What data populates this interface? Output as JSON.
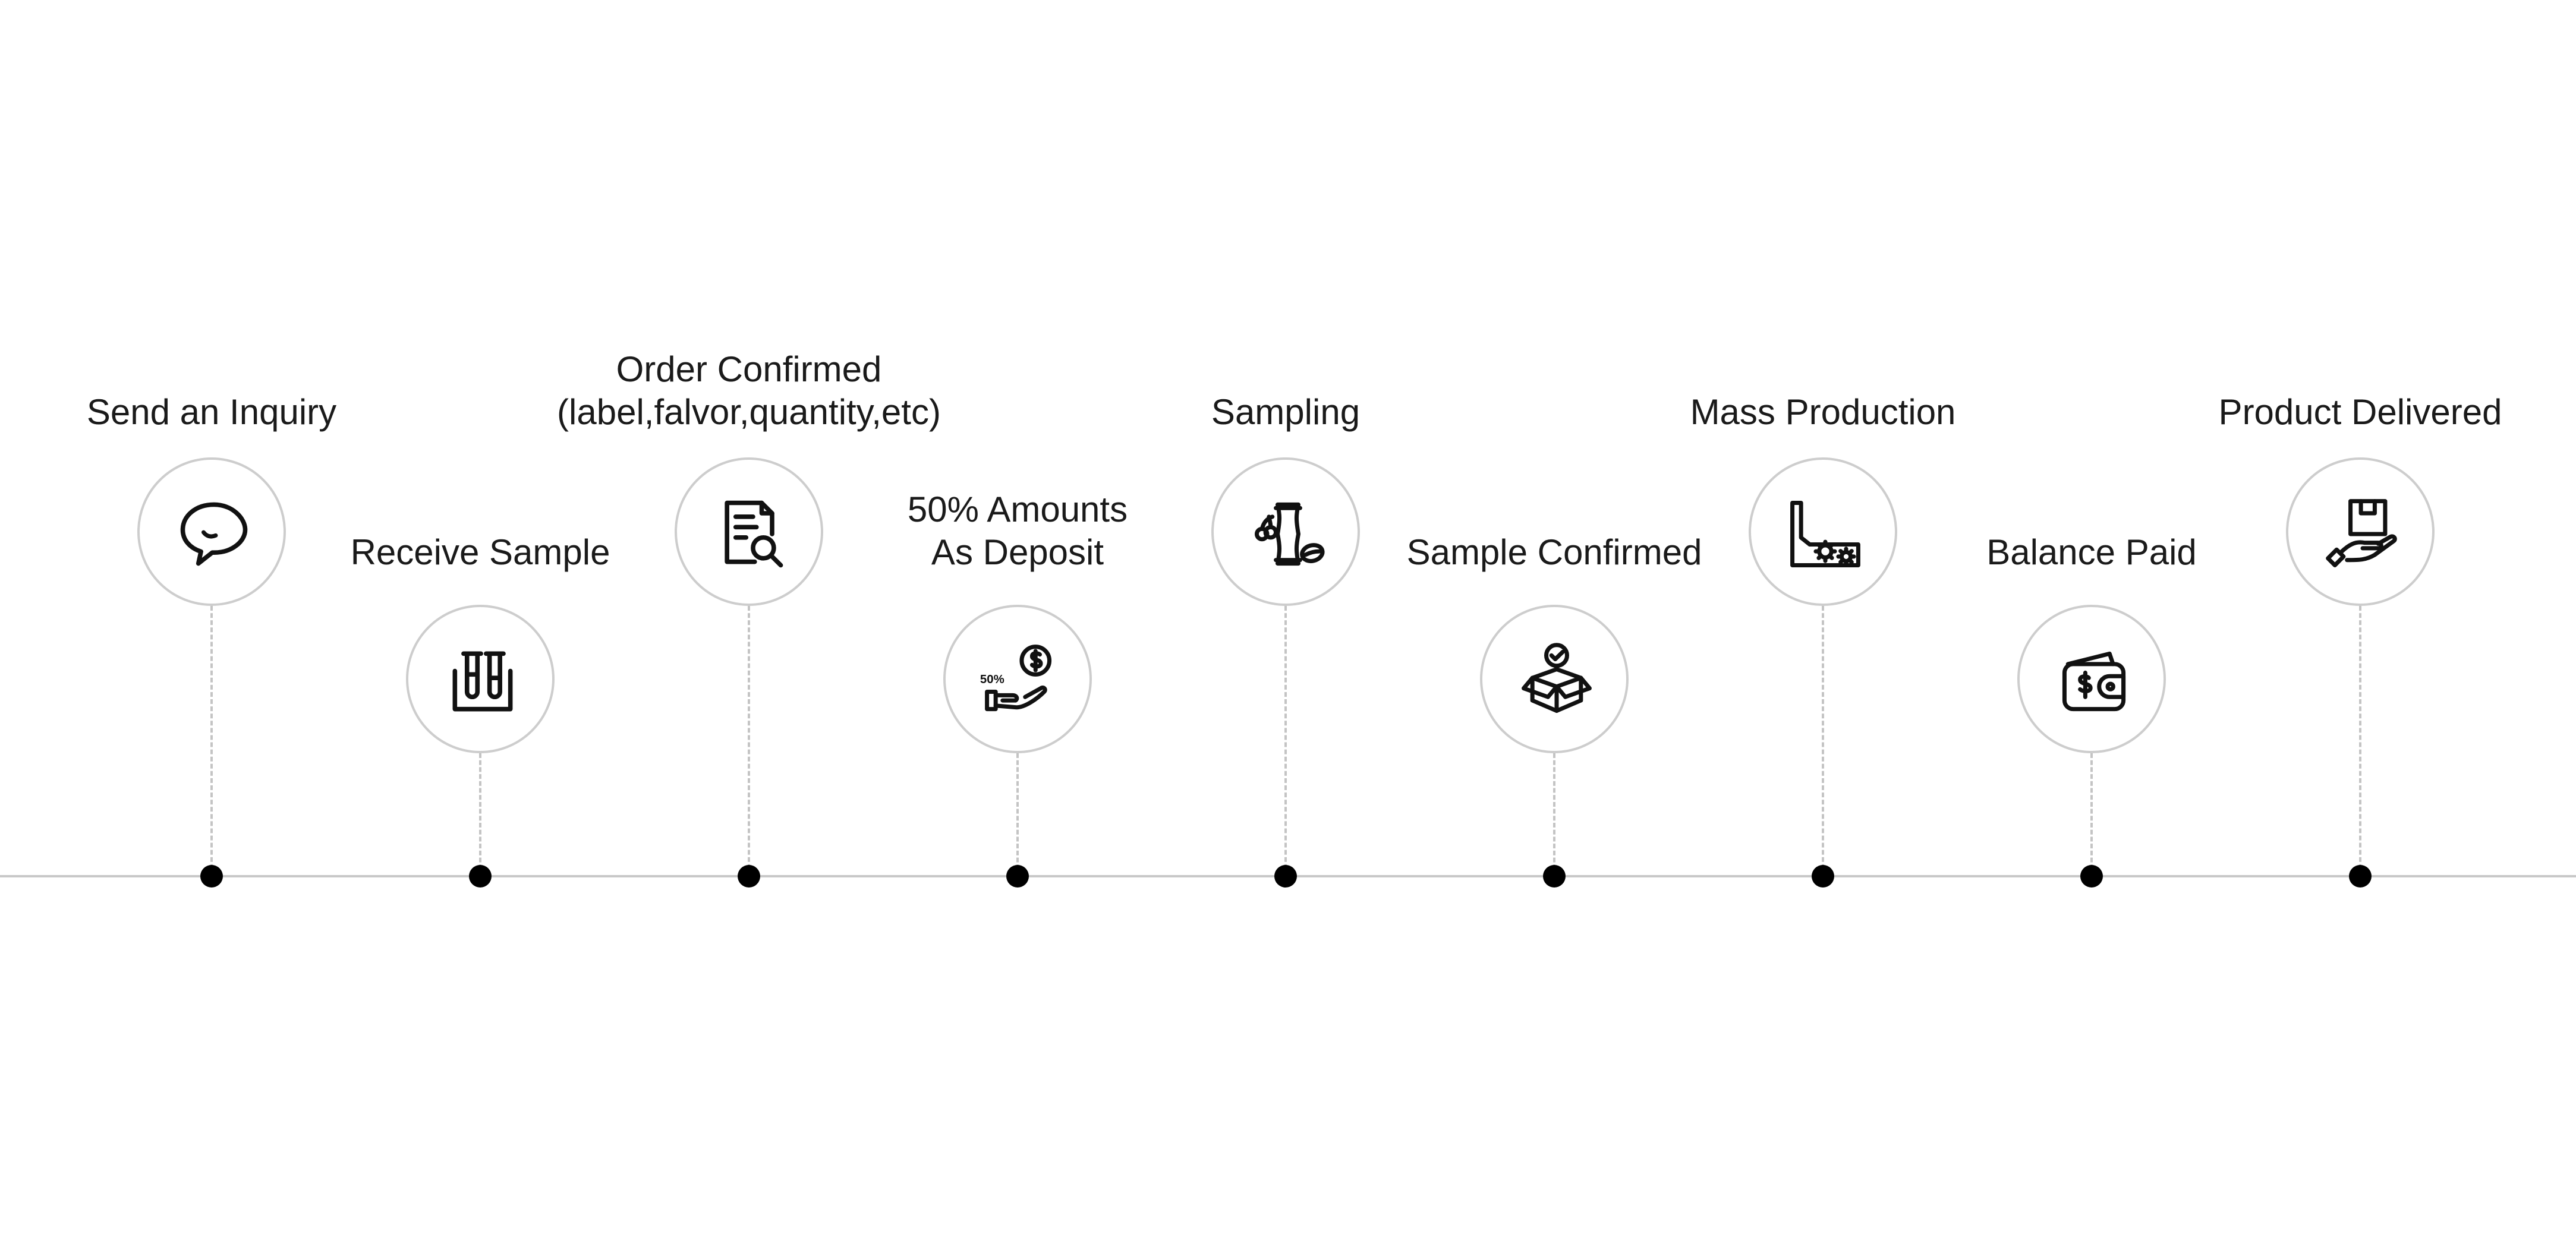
{
  "steps": [
    {
      "lines": [
        "Send an Inquiry"
      ],
      "icon": "chat-bubble-icon"
    },
    {
      "lines": [
        "Receive Sample"
      ],
      "icon": "test-tubes-icon"
    },
    {
      "lines": [
        "Order Confirmed",
        "(label,falvor,quantity,etc)"
      ],
      "icon": "document-search-icon"
    },
    {
      "lines": [
        "50% Amounts",
        "As Deposit"
      ],
      "icon": "hand-coin-icon",
      "icon_text": "50%"
    },
    {
      "lines": [
        "Sampling"
      ],
      "icon": "package-fruit-icon"
    },
    {
      "lines": [
        "Sample Confirmed"
      ],
      "icon": "box-check-icon"
    },
    {
      "lines": [
        "Mass Production"
      ],
      "icon": "factory-gears-icon"
    },
    {
      "lines": [
        "Balance Paid"
      ],
      "icon": "wallet-dollar-icon"
    },
    {
      "lines": [
        "Product Delivered"
      ],
      "icon": "hand-box-icon"
    }
  ],
  "colors": {
    "line": "#c8c8c8",
    "circle_border": "#cdcdcd",
    "dot": "#000000",
    "text": "#1a1a1a"
  }
}
